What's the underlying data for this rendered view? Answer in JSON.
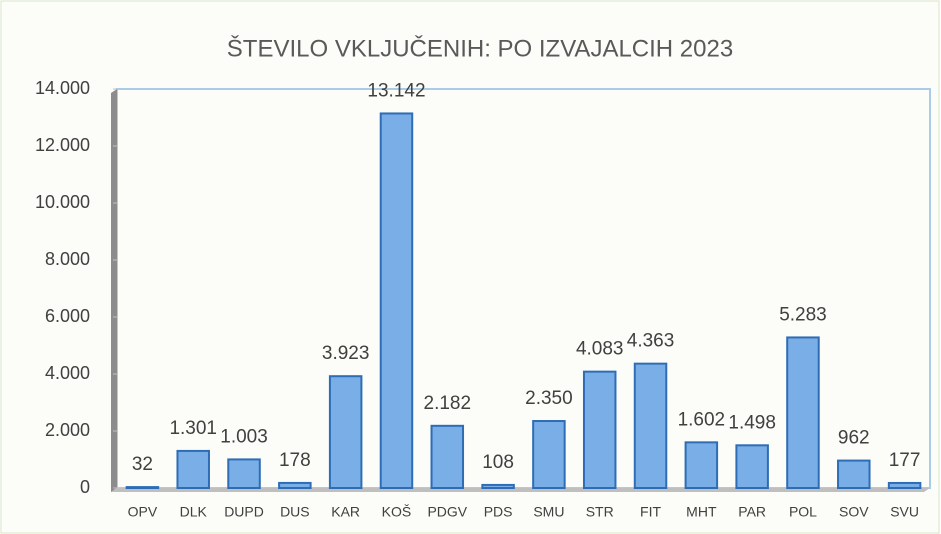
{
  "chart_data": {
    "type": "bar",
    "title": "ŠTEVILO VKLJUČENIH: PO IZVAJALCIH 2023",
    "categories": [
      "OPV",
      "DLK",
      "DUPD",
      "DUS",
      "KAR",
      "KOŠ",
      "PDGV",
      "PDS",
      "SMU",
      "STR",
      "FIT",
      "MHT",
      "PAR",
      "POL",
      "SOV",
      "SVU"
    ],
    "values": [
      32,
      1301,
      1003,
      178,
      3923,
      13142,
      2182,
      108,
      2350,
      4083,
      4363,
      1602,
      1498,
      5283,
      962,
      177
    ],
    "value_labels": [
      "32",
      "1.301",
      "1.003",
      "178",
      "3.923",
      "13.142",
      "2.182",
      "108",
      "2.350",
      "4.083",
      "4.363",
      "1.602",
      "1.498",
      "5.283",
      "962",
      "177"
    ],
    "color": "#7aaee6",
    "ylim": [
      0,
      14000
    ],
    "yticks": [
      0,
      {
        "value": 2000,
        "label": "2.000"
      },
      {
        "value": 4000,
        "label": "4.000"
      },
      {
        "value": 6000,
        "label": "6.000"
      },
      {
        "value": 8000,
        "label": "8.000"
      },
      {
        "value": 10000,
        "label": "10.000"
      },
      {
        "value": 12000,
        "label": "12.000"
      },
      {
        "value": 14000,
        "label": "14.000"
      }
    ],
    "grid": false
  }
}
